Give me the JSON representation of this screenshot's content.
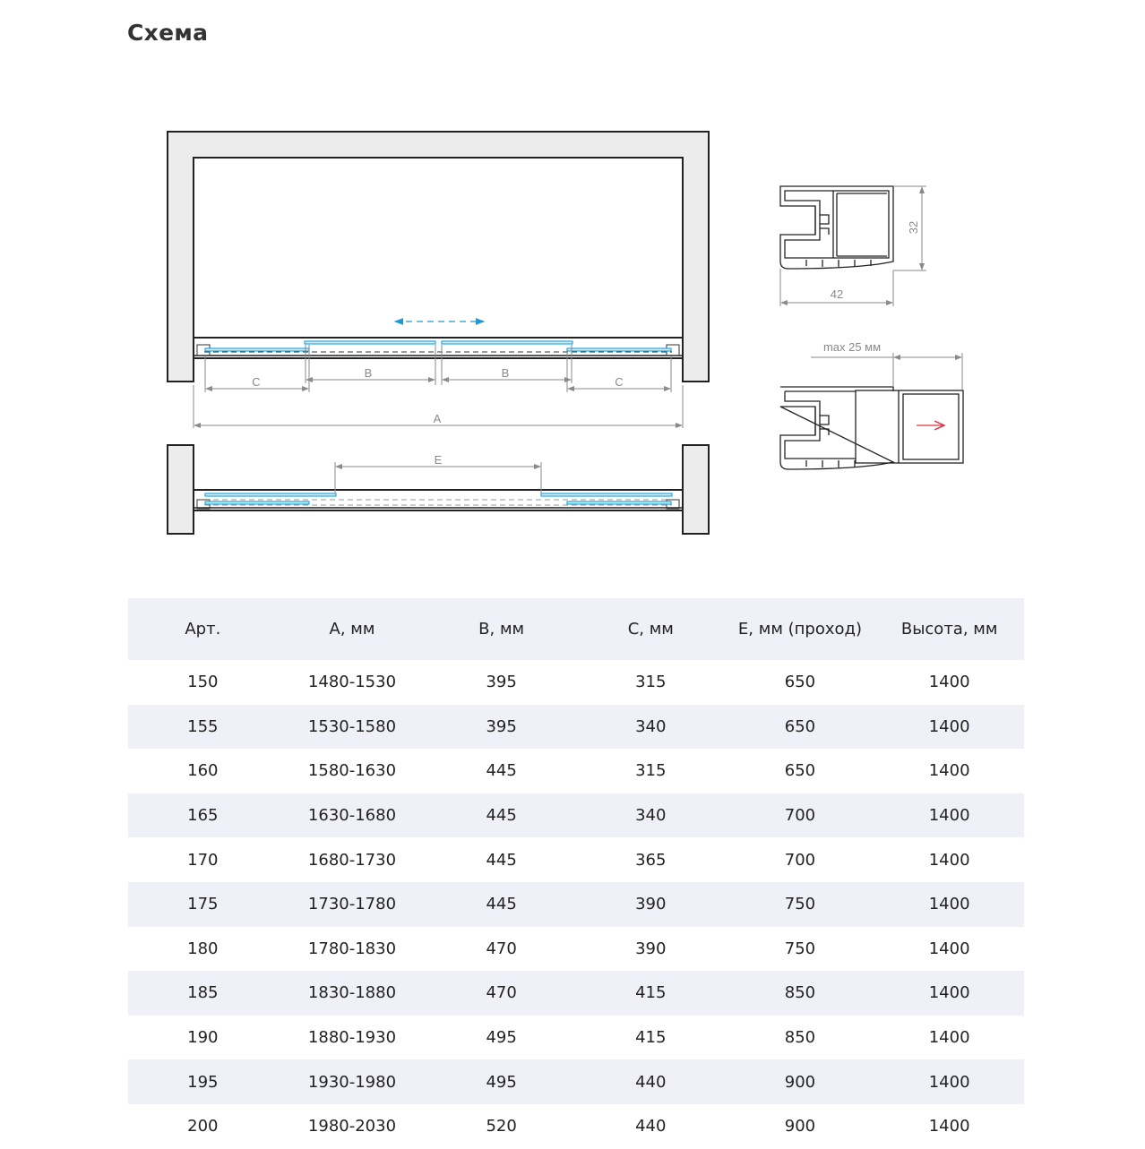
{
  "title": "Схема",
  "diagram": {
    "labels": {
      "a": "A",
      "b": "B",
      "c": "C",
      "e": "E",
      "height_32": "32",
      "width_42": "42",
      "max_offset": "max 25 мм"
    },
    "colors": {
      "glass": "#29a8e0",
      "arrow_move": "#1a9ad6",
      "arrow_red": "#e03040",
      "wall_fill": "#ececec",
      "dimension": "#8a8a8a"
    }
  },
  "table": {
    "headers": [
      "Арт.",
      "A, мм",
      "B, мм",
      "C, мм",
      "E, мм (проход)",
      "Высота, мм"
    ],
    "rows": [
      [
        "150",
        "1480-1530",
        "395",
        "315",
        "650",
        "1400"
      ],
      [
        "155",
        "1530-1580",
        "395",
        "340",
        "650",
        "1400"
      ],
      [
        "160",
        "1580-1630",
        "445",
        "315",
        "650",
        "1400"
      ],
      [
        "165",
        "1630-1680",
        "445",
        "340",
        "700",
        "1400"
      ],
      [
        "170",
        "1680-1730",
        "445",
        "365",
        "700",
        "1400"
      ],
      [
        "175",
        "1730-1780",
        "445",
        "390",
        "750",
        "1400"
      ],
      [
        "180",
        "1780-1830",
        "470",
        "390",
        "750",
        "1400"
      ],
      [
        "185",
        "1830-1880",
        "470",
        "415",
        "850",
        "1400"
      ],
      [
        "190",
        "1880-1930",
        "495",
        "415",
        "850",
        "1400"
      ],
      [
        "195",
        "1930-1980",
        "495",
        "440",
        "900",
        "1400"
      ],
      [
        "200",
        "1980-2030",
        "520",
        "440",
        "900",
        "1400"
      ]
    ]
  }
}
